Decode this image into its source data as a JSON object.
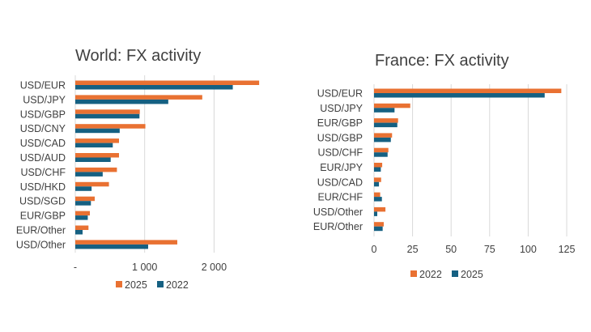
{
  "chart_data": [
    {
      "type": "bar",
      "orientation": "horizontal",
      "title": "World: FX activity",
      "categories": [
        "USD/EUR",
        "USD/JPY",
        "USD/GBP",
        "USD/CNY",
        "USD/CAD",
        "USD/AUD",
        "USD/CHF",
        "USD/HKD",
        "USD/SGD",
        "EUR/GBP",
        "EUR/Other",
        "USD/Other"
      ],
      "series": [
        {
          "name": "2025",
          "color": "#E97132",
          "values": [
            2650,
            1830,
            930,
            1010,
            630,
            630,
            600,
            485,
            280,
            210,
            190,
            1470
          ]
        },
        {
          "name": "2022",
          "color": "#156082",
          "values": [
            2270,
            1340,
            925,
            640,
            540,
            510,
            395,
            235,
            225,
            180,
            105,
            1050
          ]
        }
      ],
      "xlim": [
        0,
        2700
      ],
      "xticks": [
        0,
        1000,
        2000
      ],
      "xtick_labels": [
        "-",
        "1 000",
        "2 000"
      ],
      "grid": true,
      "legend": "bottom"
    },
    {
      "type": "bar",
      "orientation": "horizontal",
      "title": "France: FX activity",
      "categories": [
        "USD/EUR",
        "USD/JPY",
        "EUR/GBP",
        "USD/GBP",
        "USD/CHF",
        "EUR/JPY",
        "USD/CAD",
        "EUR/CHF",
        "USD/Other",
        "EUR/Other"
      ],
      "series": [
        {
          "name": "2022",
          "color": "#E97132",
          "values": [
            121.5,
            23.5,
            15.6,
            11.7,
            9.3,
            5.3,
            4.6,
            4.0,
            7.4,
            6.3
          ]
        },
        {
          "name": "2025",
          "color": "#156082",
          "values": [
            110.7,
            13.3,
            15.1,
            10.9,
            8.8,
            4.4,
            3.2,
            5.1,
            2.1,
            5.6
          ]
        }
      ],
      "xlim": [
        0,
        125
      ],
      "xticks": [
        0,
        25,
        50,
        75,
        100,
        125
      ],
      "xtick_labels": [
        "0",
        "25",
        "50",
        "75",
        "100",
        "125"
      ],
      "grid": true,
      "legend": "bottom"
    }
  ]
}
